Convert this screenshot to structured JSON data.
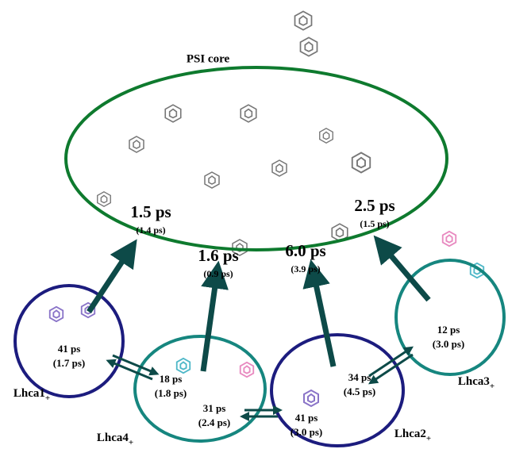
{
  "title": "PSI core",
  "core_transfers": [
    {
      "time": "1.5 ps",
      "alt": "(1.4 ps)"
    },
    {
      "time": "1.6 ps",
      "alt": "(0.9 ps)"
    },
    {
      "time": "6.0 ps",
      "alt": "(3.9 ps)"
    },
    {
      "time": "2.5 ps",
      "alt": "(1.5 ps)"
    }
  ],
  "antennas": [
    {
      "name": "Lhca1",
      "subscript": "+"
    },
    {
      "name": "Lhca4",
      "subscript": "+"
    },
    {
      "name": "Lhca2",
      "subscript": "+"
    },
    {
      "name": "Lhca3",
      "subscript": "+"
    }
  ],
  "antenna_times": [
    {
      "time": "41 ps",
      "alt": "(1.7 ps)"
    },
    {
      "time": "18 ps",
      "alt": "(1.8 ps)"
    },
    {
      "time": "31 ps",
      "alt": "(2.4 ps)"
    },
    {
      "time": "41 ps",
      "alt": "(3.0 ps)"
    },
    {
      "time": "34 ps",
      "alt": "(4.5 ps)"
    },
    {
      "time": "12 ps",
      "alt": "(3.0 ps)"
    }
  ]
}
